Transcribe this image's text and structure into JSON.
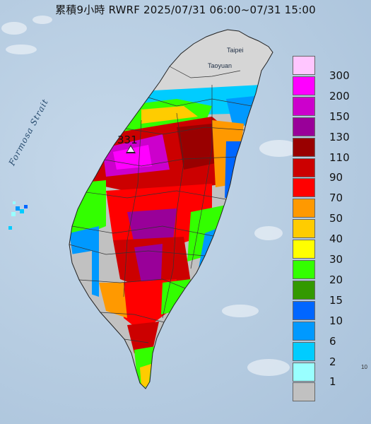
{
  "title": "累積9小時 RWRF 2025/07/31 06:00~07/31 15:00",
  "labels": {
    "strait": "Formosa Strait",
    "taipei": "Taipei",
    "taoyuan": "Taoyuan",
    "max_value": "331",
    "corner_mark": "10"
  },
  "legend": {
    "items": [
      {
        "label": "300",
        "color": "#ffc6ff"
      },
      {
        "label": "200",
        "color": "#ff00ff"
      },
      {
        "label": "150",
        "color": "#cc00cc"
      },
      {
        "label": "130",
        "color": "#990099"
      },
      {
        "label": "110",
        "color": "#990000"
      },
      {
        "label": "90",
        "color": "#cc0000"
      },
      {
        "label": "70",
        "color": "#ff0000"
      },
      {
        "label": "50",
        "color": "#ff9900"
      },
      {
        "label": "40",
        "color": "#ffcc00"
      },
      {
        "label": "30",
        "color": "#ffff00"
      },
      {
        "label": "20",
        "color": "#33ff00"
      },
      {
        "label": "15",
        "color": "#339900"
      },
      {
        "label": "10",
        "color": "#0066ff"
      },
      {
        "label": "6",
        "color": "#0099ff"
      },
      {
        "label": "2",
        "color": "#00ccff"
      },
      {
        "label": "1",
        "color": "#99ffff"
      },
      {
        "label": "",
        "color": "#c1c1c1"
      }
    ]
  },
  "colors": {
    "sea": "#b9cfe3",
    "land_no_rain": "#c1c1c1",
    "land_cool": "#e7eef5"
  }
}
